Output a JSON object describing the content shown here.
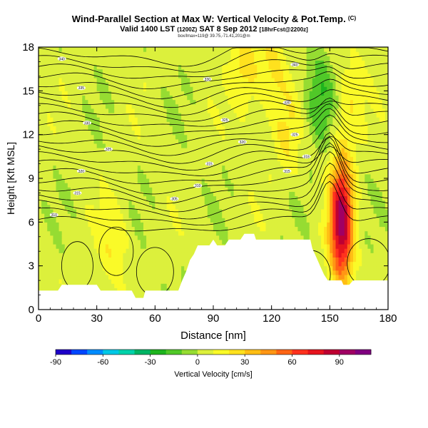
{
  "title": {
    "main": "Wind-Parallel Section at Max W: Vertical Velocity & Pot.Temp.",
    "corner_mark": "(C)",
    "valid_line": "Valid 1400 LST",
    "valid_utc": "(1200Z)",
    "valid_date": "SAT 8 Sep 2012",
    "forecast_tag": "[18hrFcst@2200z]",
    "params_line": "box/lmax=119@ 39.75,-71.41,201@m"
  },
  "chart_data": {
    "type": "heatmap",
    "xlabel": "Distance [nm]",
    "ylabel": "Height [Kft MSL]",
    "xlim": [
      0,
      180
    ],
    "ylim": [
      0,
      18
    ],
    "x_ticks": [
      "0",
      "30",
      "60",
      "90",
      "120",
      "150",
      "180"
    ],
    "y_ticks": [
      "0",
      "3",
      "6",
      "9",
      "12",
      "15",
      "18"
    ],
    "colorbar": {
      "label": "Vertical Velocity [cm/s]",
      "range": [
        -90,
        110
      ],
      "tick_labels": [
        "-90",
        "-60",
        "-30",
        "0",
        "30",
        "60",
        "90"
      ],
      "colors": [
        "#1e00c8",
        "#0046ff",
        "#008cff",
        "#00c8e6",
        "#00d2aa",
        "#00b464",
        "#1eb41e",
        "#50c828",
        "#96dc32",
        "#dcf03c",
        "#fafa28",
        "#ffe11e",
        "#ffbe14",
        "#ff9614",
        "#ff6414",
        "#ff321e",
        "#e6141e",
        "#be0032",
        "#a00064",
        "#800080"
      ]
    },
    "vertical_velocity_features": [
      {
        "x": 38,
        "y": 4.5,
        "value": 20
      },
      {
        "x": 106,
        "y": 16.5,
        "value": 25
      },
      {
        "x": 120,
        "y": 16.5,
        "value": 22
      },
      {
        "x": 128,
        "y": 12,
        "value": 20
      },
      {
        "x": 145,
        "y": 14.5,
        "value": -20
      },
      {
        "x": 156,
        "y": 6,
        "value": 95
      },
      {
        "x": 160,
        "y": 14.5,
        "value": 20
      }
    ],
    "theta_contour_labels": [
      {
        "x": 12,
        "y": 17.2,
        "text": "340"
      },
      {
        "x": 22,
        "y": 15.2,
        "text": "335"
      },
      {
        "x": 25,
        "y": 12.8,
        "text": "330"
      },
      {
        "x": 36,
        "y": 11.0,
        "text": "325"
      },
      {
        "x": 22,
        "y": 9.5,
        "text": "320"
      },
      {
        "x": 20,
        "y": 8.0,
        "text": "315"
      },
      {
        "x": 8,
        "y": 6.5,
        "text": "310"
      },
      {
        "x": 70,
        "y": 7.6,
        "text": "305"
      },
      {
        "x": 82,
        "y": 8.5,
        "text": "310"
      },
      {
        "x": 88,
        "y": 10.0,
        "text": "315"
      },
      {
        "x": 96,
        "y": 13.0,
        "text": "325"
      },
      {
        "x": 87,
        "y": 15.8,
        "text": "330"
      },
      {
        "x": 105,
        "y": 11.5,
        "text": "320"
      },
      {
        "x": 132,
        "y": 16.8,
        "text": "340"
      },
      {
        "x": 128,
        "y": 14.2,
        "text": "330"
      },
      {
        "x": 132,
        "y": 12.0,
        "text": "325"
      },
      {
        "x": 128,
        "y": 9.5,
        "text": "315"
      },
      {
        "x": 138,
        "y": 10.5,
        "text": "318"
      }
    ]
  }
}
